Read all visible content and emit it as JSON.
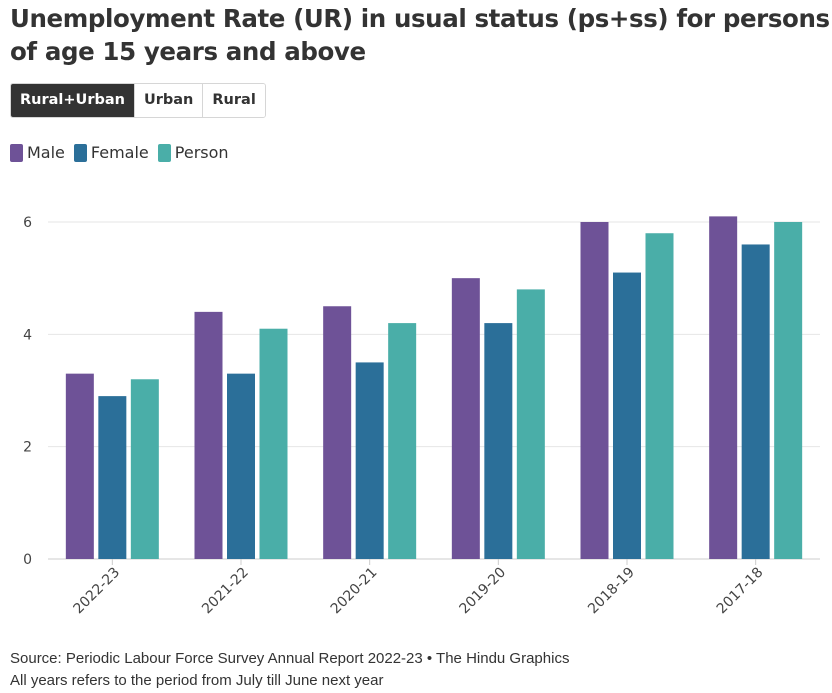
{
  "title": "Unemployment Rate (UR) in usual status (ps+ss) for persons of age 15 years and above",
  "tabs": [
    {
      "label": "Rural+Urban",
      "active": true
    },
    {
      "label": "Urban",
      "active": false
    },
    {
      "label": "Rural",
      "active": false
    }
  ],
  "colors": {
    "Male": "#6e5297",
    "Female": "#2b6f99",
    "Person": "#4aaea8"
  },
  "chart_data": {
    "type": "bar",
    "categories": [
      "2022-23",
      "2021-22",
      "2020-21",
      "2019-20",
      "2018-19",
      "2017-18"
    ],
    "series": [
      {
        "name": "Male",
        "values": [
          3.3,
          4.4,
          4.5,
          5.0,
          6.0,
          6.1
        ]
      },
      {
        "name": "Female",
        "values": [
          2.9,
          3.3,
          3.5,
          4.2,
          5.1,
          5.6
        ]
      },
      {
        "name": "Person",
        "values": [
          3.2,
          4.1,
          4.2,
          4.8,
          5.8,
          6.0
        ]
      }
    ],
    "yticks": [
      0,
      2,
      4,
      6
    ],
    "ylim": [
      0,
      6.45
    ],
    "grid": true,
    "legend_position": "top-left"
  },
  "footer": {
    "source": "Source: Periodic Labour Force Survey Annual Report 2022-23 • The Hindu Graphics",
    "note": "All years refers to the period from July till June next year"
  }
}
